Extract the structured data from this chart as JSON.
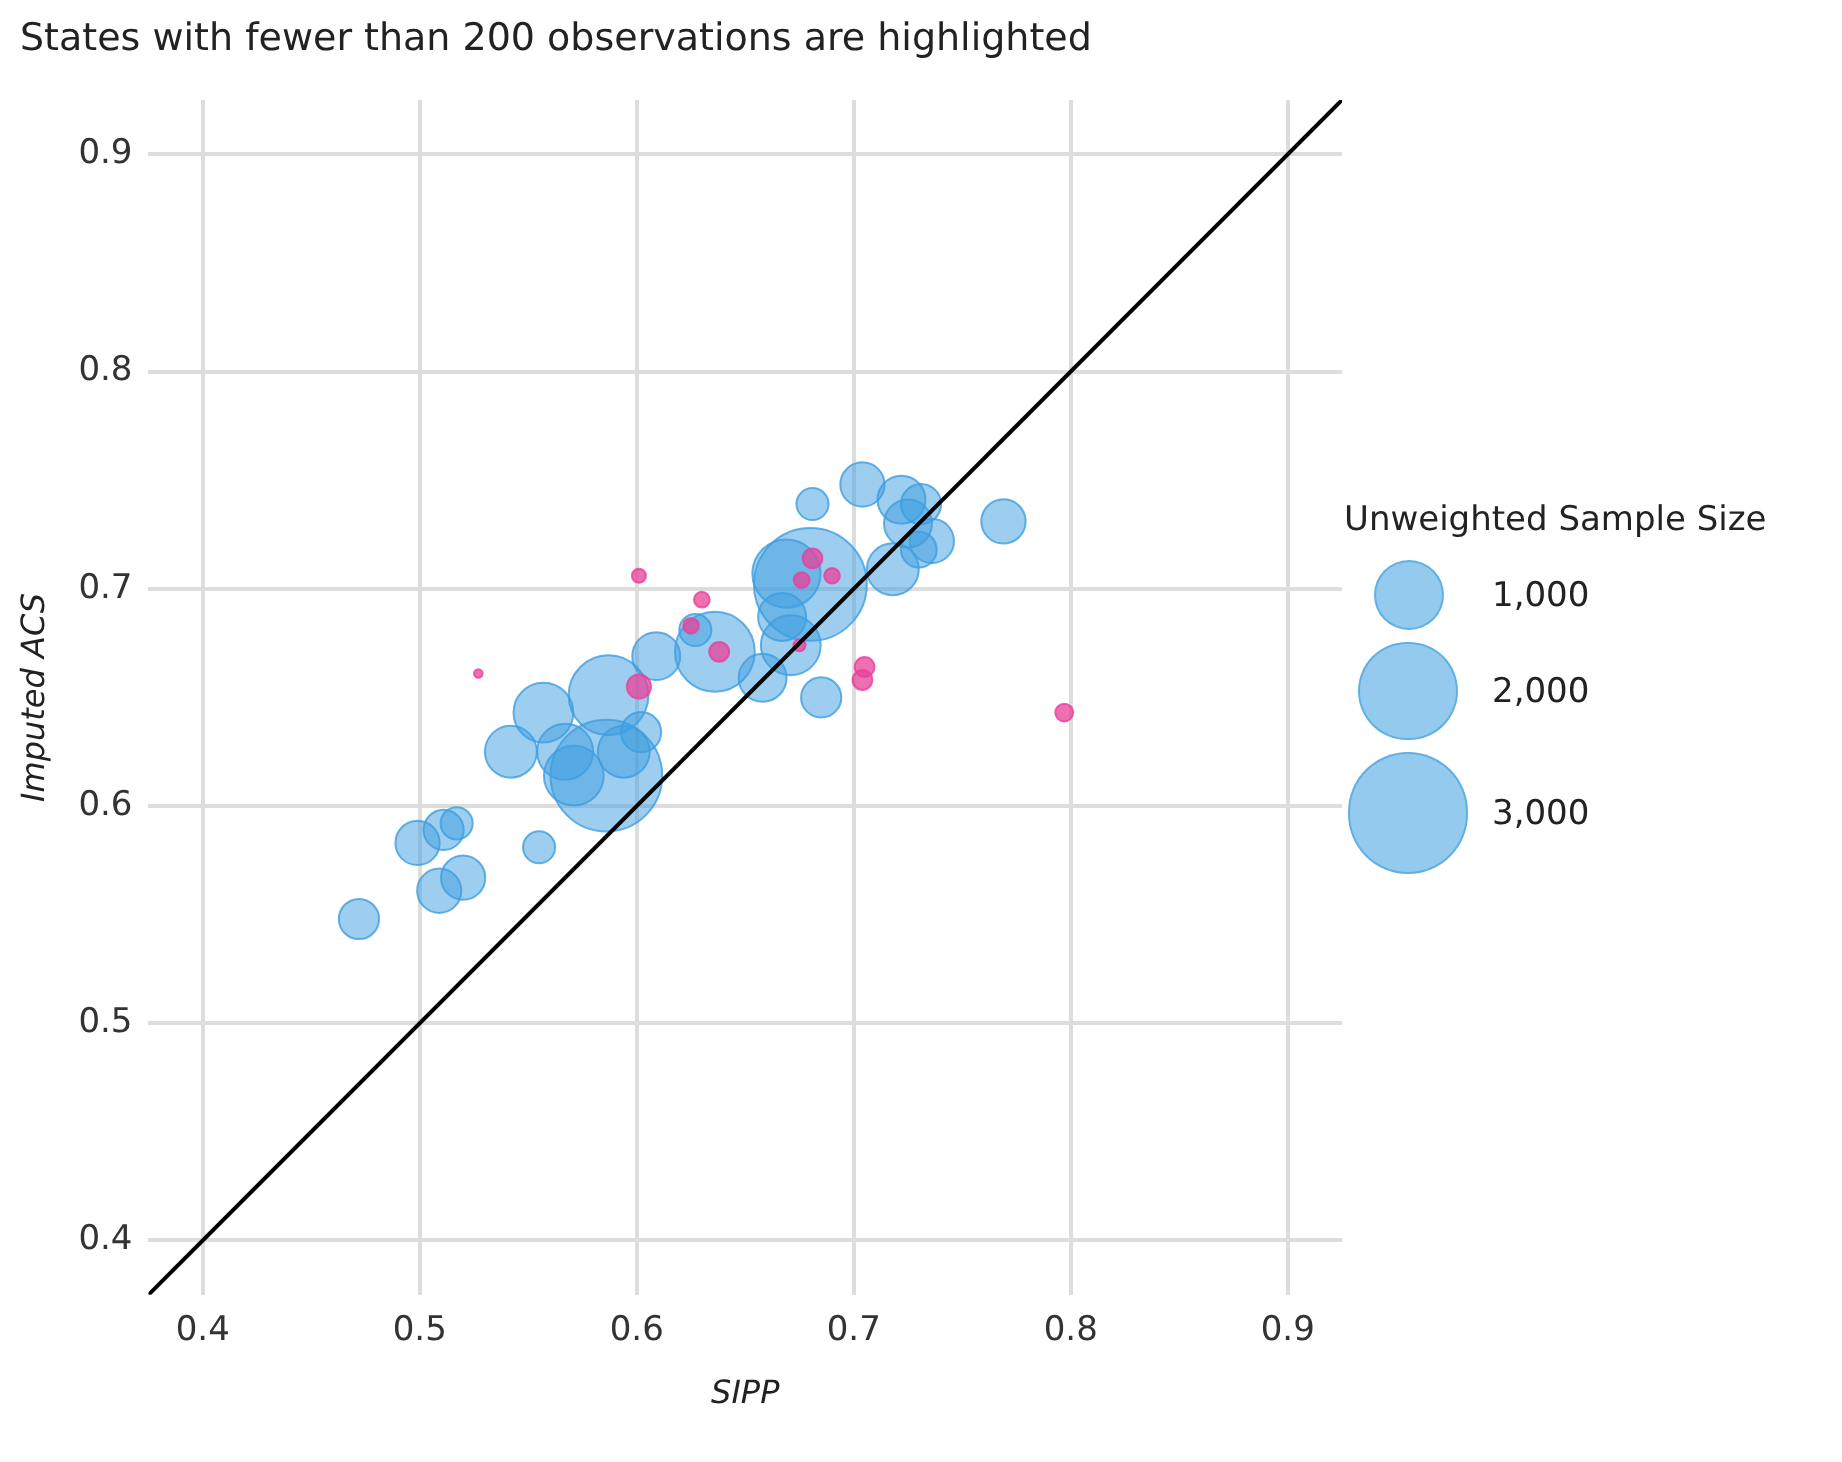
{
  "chart_data": {
    "type": "bubble",
    "title": "States with fewer than 200 observations are highlighted",
    "xlabel": "SIPP",
    "ylabel": "Imputed ACS",
    "legend_title": "Unweighted Sample Size",
    "xlim": [
      0.375,
      0.925
    ],
    "ylim": [
      0.375,
      0.925
    ],
    "xticks": [
      0.4,
      0.5,
      0.6,
      0.7,
      0.8,
      0.9
    ],
    "yticks": [
      0.4,
      0.5,
      0.6,
      0.7,
      0.8,
      0.9
    ],
    "grid": true,
    "size_legend": [
      {
        "value": 1000,
        "label": "1,000"
      },
      {
        "value": 2000,
        "label": "2,000"
      },
      {
        "value": 3000,
        "label": "3,000"
      }
    ],
    "series": [
      {
        "color": "#3d9ee0",
        "x": [
          0.472,
          0.499,
          0.511,
          0.517,
          0.509,
          0.52,
          0.555,
          0.542,
          0.557,
          0.587,
          0.586,
          0.567,
          0.571,
          0.594,
          0.602,
          0.68,
          0.681,
          0.704,
          0.722,
          0.731,
          0.725,
          0.736,
          0.73,
          0.718,
          0.769,
          0.669,
          0.671,
          0.667,
          0.658,
          0.685,
          0.636,
          0.627,
          0.609
        ],
        "values": [
          0.548,
          0.583,
          0.589,
          0.592,
          0.561,
          0.567,
          0.581,
          0.625,
          0.643,
          0.651,
          0.614,
          0.625,
          0.614,
          0.625,
          0.634,
          0.702,
          0.739,
          0.748,
          0.741,
          0.739,
          0.73,
          0.722,
          0.718,
          0.709,
          0.731,
          0.707,
          0.674,
          0.687,
          0.659,
          0.65,
          0.671,
          0.681,
          0.669
        ],
        "sizes": [
          330,
          400,
          330,
          210,
          400,
          400,
          210,
          550,
          730,
          1300,
          2550,
          640,
          730,
          550,
          330,
          2600,
          210,
          400,
          470,
          330,
          470,
          400,
          260,
          550,
          400,
          950,
          730,
          470,
          470,
          330,
          1300,
          210,
          470
        ]
      },
      {
        "color": "#e8409a",
        "x": [
          0.601,
          0.527,
          0.601,
          0.63,
          0.681,
          0.69,
          0.676,
          0.638,
          0.675,
          0.705,
          0.704,
          0.797,
          0.625
        ],
        "values": [
          0.706,
          0.661,
          0.655,
          0.695,
          0.714,
          0.706,
          0.704,
          0.671,
          0.674,
          0.664,
          0.658,
          0.643,
          0.683
        ],
        "sizes": [
          40,
          15,
          120,
          50,
          80,
          50,
          50,
          80,
          30,
          80,
          80,
          65,
          50
        ]
      },
      {
        "type": "line",
        "color": "#000000",
        "x": [
          0.375,
          0.925
        ],
        "values": [
          0.375,
          0.925
        ],
        "marker": "none"
      }
    ]
  }
}
